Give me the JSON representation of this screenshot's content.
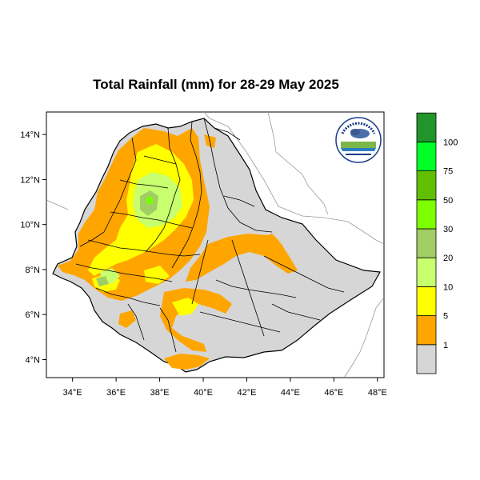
{
  "title": "Total Rainfall (mm) for 28-29 May 2025",
  "map": {
    "lat_ticks": [
      "4°N",
      "6°N",
      "8°N",
      "10°N",
      "12°N",
      "14°N"
    ],
    "lon_ticks": [
      "34°E",
      "36°E",
      "38°E",
      "40°E",
      "42°E",
      "44°E",
      "46°E",
      "48°E"
    ],
    "lon_range": [
      32.8,
      48.3
    ],
    "lat_range": [
      3.2,
      15.0
    ],
    "logo_label": "Ethiopian Meteorology Institute"
  },
  "legend": {
    "bins": [
      {
        "label": "1",
        "color": "#d6d6d6"
      },
      {
        "label": "5",
        "color": "#ffa500"
      },
      {
        "label": "10",
        "color": "#ffff00"
      },
      {
        "label": "20",
        "color": "#c8ff6e"
      },
      {
        "label": "30",
        "color": "#a0cd64"
      },
      {
        "label": "50",
        "color": "#7dff00"
      },
      {
        "label": "75",
        "color": "#60c000"
      },
      {
        "label": "100",
        "color": "#00ff28"
      },
      {
        "label": "",
        "color": "#22952a"
      }
    ]
  },
  "colors": {
    "land": "#d6d6d6",
    "rain_1_5": "#ffa500",
    "rain_5_10": "#ffff00",
    "rain_10_20": "#c8ff6e",
    "rain_20_30": "#a0cd64",
    "rain_30_50": "#7dff00",
    "border": "#000000"
  }
}
